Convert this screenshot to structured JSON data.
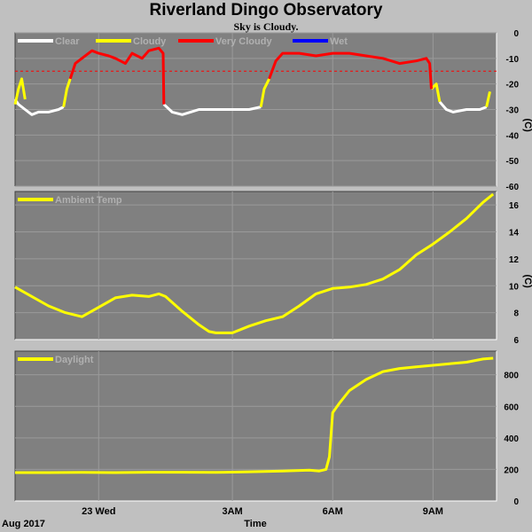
{
  "chart_data": [
    {
      "type": "line",
      "title": "Riverland Dingo Observatory",
      "subtitle": "Sky is Cloudy.",
      "ylabel": "(C)",
      "ylim": [
        -60,
        0
      ],
      "yticks": [
        0,
        -10,
        -20,
        -30,
        -40,
        -50,
        -60
      ],
      "threshold_line": -15,
      "grid": true,
      "legend_position": "top-left",
      "legend": [
        {
          "name": "Clear",
          "color": "#ffffff"
        },
        {
          "name": "Cloudy",
          "color": "#ffff00"
        },
        {
          "name": "Very Cloudy",
          "color": "#ff0000"
        },
        {
          "name": "Wet",
          "color": "#0000ff"
        }
      ],
      "series": [
        {
          "name": "Clear",
          "color": "#ffffff",
          "segments": [
            {
              "x": [
                20.5,
                20.6,
                20.8,
                21.0,
                21.2,
                21.5,
                21.8,
                21.95
              ],
              "y": [
                -26,
                -28,
                -30,
                -32,
                -31,
                -31,
                -30,
                -29
              ]
            },
            {
              "x": [
                24.95,
                25.2,
                25.5,
                26.0,
                26.5,
                27.0,
                27.5,
                27.85
              ],
              "y": [
                -28,
                -31,
                -32,
                -30,
                -30,
                -30,
                -30,
                -29
              ]
            },
            {
              "x": [
                33.2,
                33.4,
                33.6,
                34.0,
                34.4,
                34.6
              ],
              "y": [
                -27,
                -30,
                -31,
                -30,
                -30,
                -29
              ]
            }
          ]
        },
        {
          "name": "Cloudy",
          "color": "#ffff00",
          "segments": [
            {
              "x": [
                20.5,
                20.6,
                20.7,
                20.8
              ],
              "y": [
                -28,
                -22,
                -18,
                -26
              ]
            },
            {
              "x": [
                21.95,
                22.05,
                22.15
              ],
              "y": [
                -29,
                -22,
                -18
              ]
            },
            {
              "x": [
                27.85,
                27.95,
                28.1
              ],
              "y": [
                -29,
                -22,
                -18
              ]
            },
            {
              "x": [
                32.95,
                33.1,
                33.2
              ],
              "y": [
                -22,
                -20,
                -27
              ]
            },
            {
              "x": [
                34.6,
                34.7
              ],
              "y": [
                -29,
                -23
              ]
            }
          ]
        },
        {
          "name": "Very Cloudy",
          "color": "#ff0000",
          "segments": [
            {
              "x": [
                22.15,
                22.3,
                22.5,
                22.8,
                23.0,
                23.3,
                23.5,
                23.8,
                24.0,
                24.3,
                24.5,
                24.8,
                24.93,
                24.95
              ],
              "y": [
                -18,
                -12,
                -10,
                -7,
                -8,
                -9,
                -10,
                -12,
                -8,
                -10,
                -7,
                -6,
                -8,
                -28
              ]
            },
            {
              "x": [
                28.1,
                28.3,
                28.5,
                29.0,
                29.5,
                30.0,
                30.5,
                31.0,
                31.5,
                32.0,
                32.5,
                32.8,
                32.9,
                32.95
              ],
              "y": [
                -18,
                -11,
                -8,
                -8,
                -9,
                -8,
                -8,
                -9,
                -10,
                -12,
                -11,
                -10,
                -12,
                -22
              ]
            }
          ]
        },
        {
          "name": "Wet",
          "color": "#0000ff",
          "segments": []
        }
      ]
    },
    {
      "type": "line",
      "ylabel": "(C)",
      "ylim": [
        6,
        17
      ],
      "yticks": [
        6,
        8,
        10,
        12,
        14,
        16
      ],
      "grid": true,
      "legend_position": "top-left",
      "series": [
        {
          "name": "Ambient Temp",
          "color": "#ffff00",
          "x": [
            20.5,
            21.0,
            21.5,
            22.0,
            22.5,
            23.0,
            23.5,
            24.0,
            24.5,
            24.8,
            25.0,
            25.5,
            26.0,
            26.3,
            26.5,
            27.0,
            27.5,
            28.0,
            28.5,
            29.0,
            29.5,
            30.0,
            30.5,
            31.0,
            31.5,
            32.0,
            32.5,
            33.0,
            33.5,
            34.0,
            34.5,
            34.8
          ],
          "y": [
            9.9,
            9.2,
            8.5,
            8.0,
            7.7,
            8.4,
            9.1,
            9.3,
            9.2,
            9.4,
            9.2,
            8.1,
            7.1,
            6.6,
            6.5,
            6.5,
            7.0,
            7.4,
            7.7,
            8.5,
            9.4,
            9.8,
            9.9,
            10.1,
            10.5,
            11.2,
            12.3,
            13.1,
            14.0,
            15.0,
            16.2,
            16.8
          ]
        }
      ]
    },
    {
      "type": "line",
      "ylim": [
        0,
        950
      ],
      "yticks": [
        0,
        200,
        400,
        600,
        800
      ],
      "grid": true,
      "legend_position": "top-left",
      "series": [
        {
          "name": "Daylight",
          "color": "#ffff00",
          "x": [
            20.5,
            21.5,
            22.5,
            23.5,
            24.5,
            25.5,
            26.5,
            27.5,
            28.5,
            29.3,
            29.6,
            29.8,
            29.9,
            30.0,
            30.2,
            30.5,
            31.0,
            31.5,
            32.0,
            32.5,
            33.0,
            33.5,
            34.0,
            34.5,
            34.8
          ],
          "x_note": "",
          "y": [
            180,
            180,
            181,
            180,
            182,
            182,
            181,
            185,
            190,
            195,
            190,
            200,
            280,
            560,
            620,
            700,
            770,
            820,
            840,
            850,
            860,
            870,
            880,
            900,
            905
          ]
        }
      ]
    }
  ],
  "x_axis": {
    "ticks": [
      {
        "x": 23,
        "label": "23 Wed"
      },
      {
        "x": 27,
        "label": "3AM"
      },
      {
        "x": 30,
        "label": "6AM"
      },
      {
        "x": 33,
        "label": "9AM"
      }
    ],
    "left_label": "Aug 2017",
    "title": "Time",
    "range_hours": [
      20.5,
      34.9
    ]
  }
}
